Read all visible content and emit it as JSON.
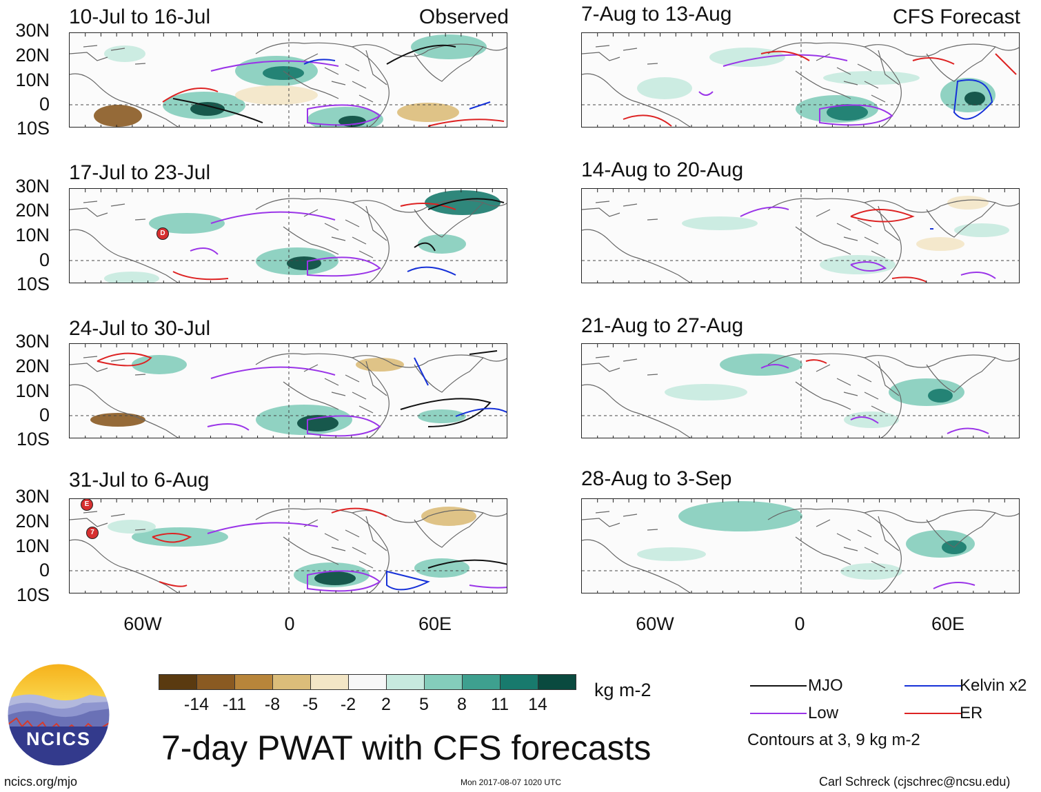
{
  "headers": {
    "observed": "Observed",
    "forecast": "CFS Forecast"
  },
  "panels": {
    "observed": [
      {
        "title": "10-Jul to 16-Jul"
      },
      {
        "title": "17-Jul to 23-Jul"
      },
      {
        "title": "24-Jul to 30-Jul"
      },
      {
        "title": "31-Jul to 6-Aug"
      }
    ],
    "forecast": [
      {
        "title": "7-Aug to 13-Aug"
      },
      {
        "title": "14-Aug to 20-Aug"
      },
      {
        "title": "21-Aug to 27-Aug"
      },
      {
        "title": "28-Aug to 3-Sep"
      }
    ]
  },
  "axes": {
    "lat_labels": [
      "30N",
      "20N",
      "10N",
      "0",
      "10S"
    ],
    "lon_labels": [
      "60W",
      "0",
      "60E"
    ]
  },
  "colorbar": {
    "colors": [
      "#5a3a10",
      "#8a5a22",
      "#b8853a",
      "#dbbd7a",
      "#f3e6c6",
      "#f7f7f7",
      "#c7eadf",
      "#84cdbb",
      "#3ea08f",
      "#187a6d",
      "#0a4a3f"
    ],
    "labels": [
      "-14",
      "-11",
      "-8",
      "-5",
      "-2",
      "2",
      "5",
      "8",
      "11",
      "14"
    ],
    "units": "kg m-2"
  },
  "legend": {
    "items": [
      {
        "label": "MJO",
        "color": "#111111"
      },
      {
        "label": "Kelvin x2",
        "color": "#1530d8"
      },
      {
        "label": "Low",
        "color": "#9a34e8"
      },
      {
        "label": "ER",
        "color": "#dd2222"
      }
    ],
    "note": "Contours at 3, 9 kg m-2"
  },
  "logo": {
    "text": "NCICS"
  },
  "main_title": "7-day PWAT with CFS forecasts",
  "footer": {
    "url": "ncics.org/mjo",
    "timestamp": "Mon 2017-08-07 1020 UTC",
    "credit": "Carl Schreck (cjschrec@ncsu.edu)"
  },
  "storm_markers": [
    {
      "panel": "observed-2",
      "label": "D"
    },
    {
      "panel": "observed-4",
      "label": "E"
    },
    {
      "panel": "observed-4",
      "label": "7"
    }
  ]
}
